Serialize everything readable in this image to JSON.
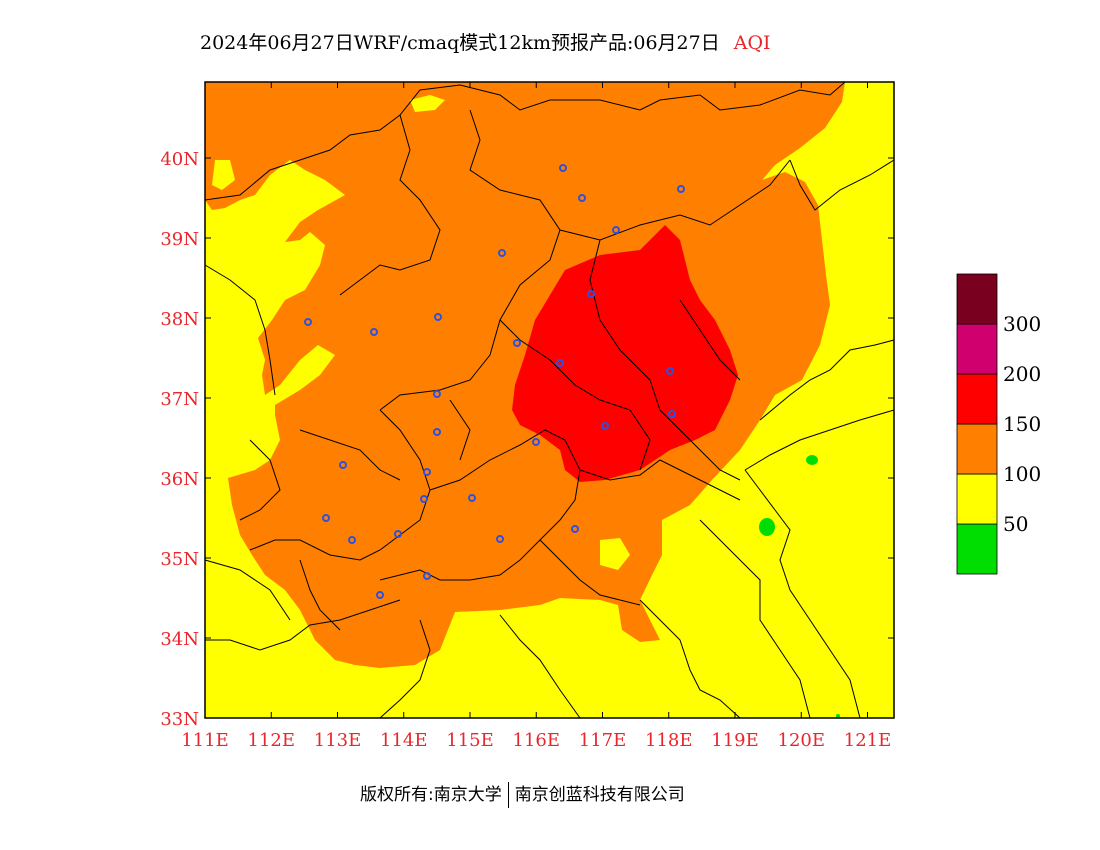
{
  "title": {
    "main": "2024年06月27日WRF/cmaq模式12km预报产品:06月27日",
    "variable": "AQI"
  },
  "map": {
    "lon_range": [
      111,
      121.4
    ],
    "lat_range": [
      33,
      40.95
    ],
    "lon_ticks": [
      "111E",
      "112E",
      "113E",
      "114E",
      "115E",
      "116E",
      "117E",
      "118E",
      "119E",
      "120E",
      "121E"
    ],
    "lat_ticks": [
      "33N",
      "34N",
      "35N",
      "36N",
      "37N",
      "38N",
      "39N",
      "40N"
    ],
    "background_level": "50-100",
    "colors": {
      "green": "#00dd00",
      "yellow": "#ffff00",
      "orange": "#ff8000",
      "red": "#ff0000",
      "magenta": "#d0006f",
      "darkred": "#7a0020",
      "station": "#3050e0"
    }
  },
  "legend": {
    "labels": [
      "50",
      "100",
      "150",
      "200",
      "300"
    ],
    "colors": [
      "#00dd00",
      "#ffff00",
      "#ff8000",
      "#ff0000",
      "#d0006f",
      "#7a0020"
    ]
  },
  "copyright": {
    "left": "版权所有:南京大学",
    "right": "南京创蓝科技有限公司"
  }
}
